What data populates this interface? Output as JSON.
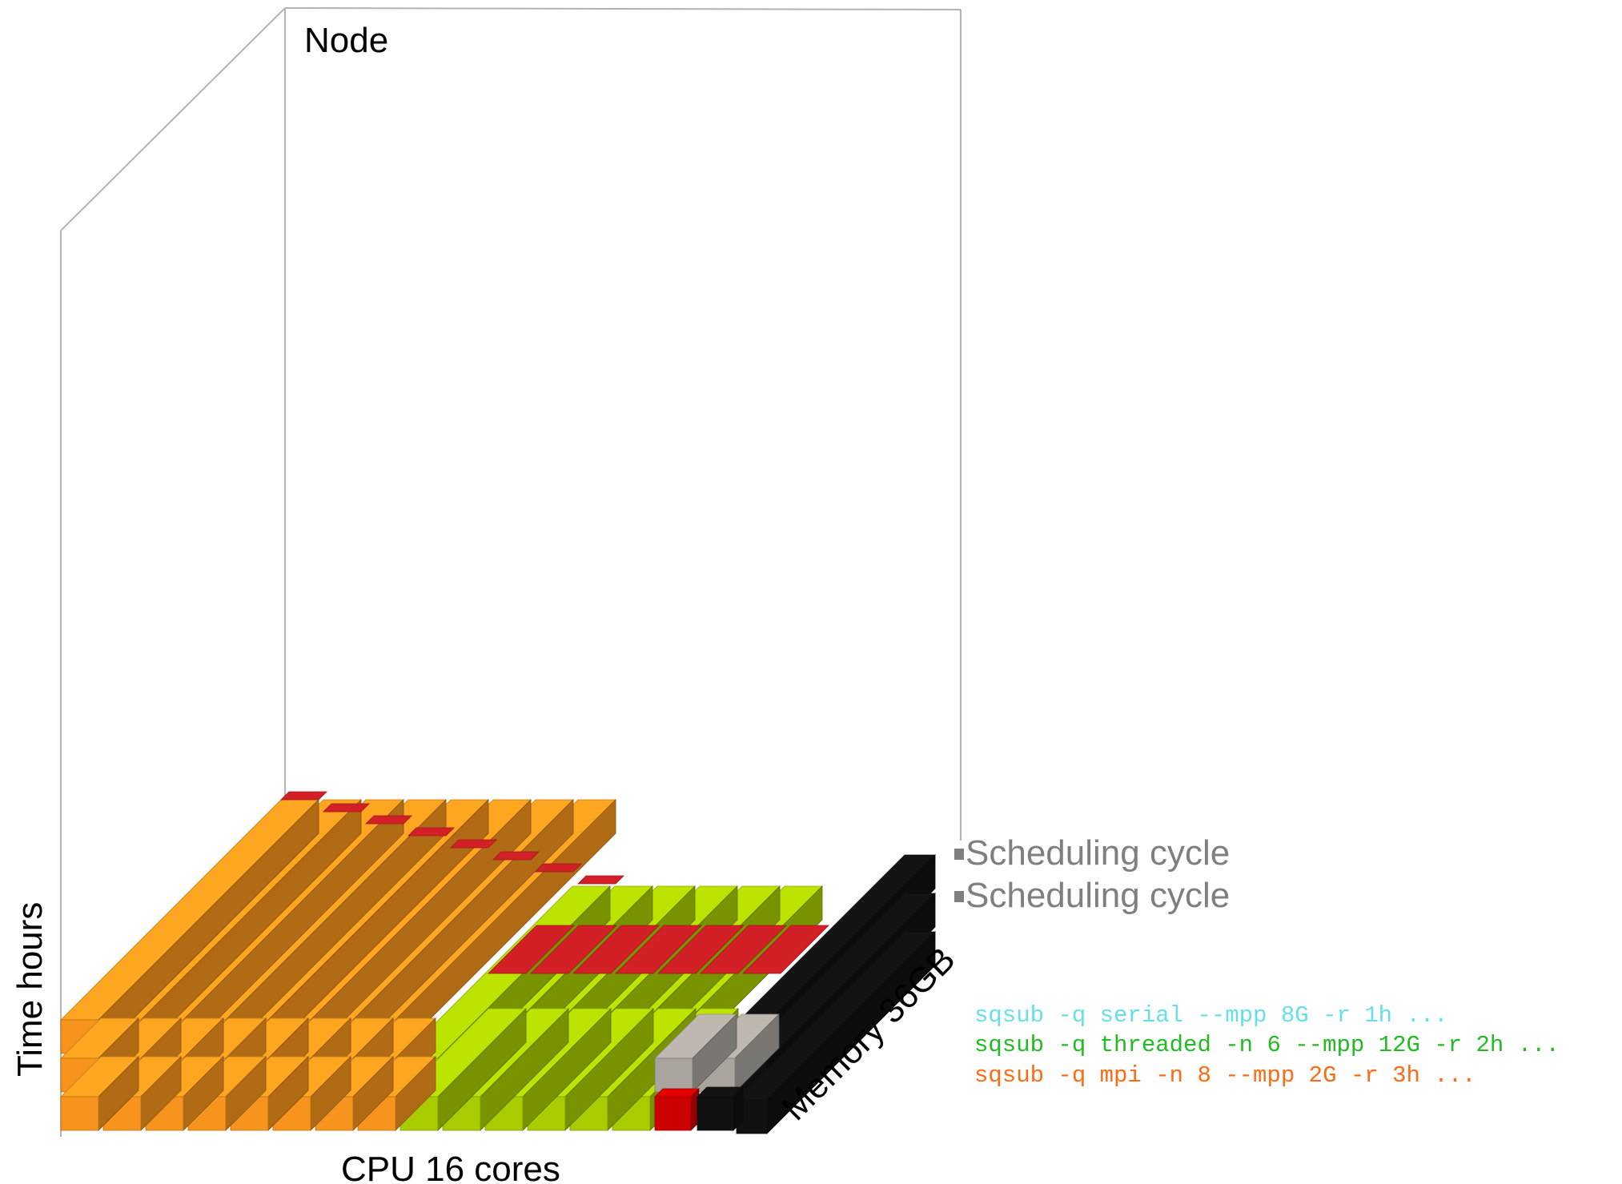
{
  "labels": {
    "node": "Node",
    "time_axis": "Time hours",
    "cpu_axis": "CPU 16 cores",
    "memory_axis": "Memory 36GB",
    "scheduling_cycle_1": "Scheduling cycle",
    "scheduling_cycle_2": "Scheduling cycle"
  },
  "commands": [
    {
      "text": "sqsub -q serial --mpp 8G -r 1h ...",
      "color": "#66e0e6",
      "job": "serial"
    },
    {
      "text": "sqsub -q threaded -n 6 --mpp 12G -r 2h ...",
      "color": "#22bb22",
      "job": "threaded"
    },
    {
      "text": "sqsub -q mpi -n 8 --mpp 2G -r 3h ...",
      "color": "#ff6a13",
      "job": "mpi"
    }
  ],
  "colors": {
    "mpi": "#f7941d",
    "threaded": "#a8cc00",
    "serial": "#aaa49e",
    "memory_used": "#d22026",
    "free": "#111111",
    "frame": "#b3b3b3"
  },
  "resources": {
    "cpu_cores": 16,
    "memory_gb": 36,
    "time_hours": 3
  },
  "jobs": {
    "mpi": {
      "cores": 8,
      "hours": 3
    },
    "threaded": {
      "cores": 6,
      "hours": 2
    },
    "serial": {
      "cores": 2,
      "hours": 1
    }
  }
}
